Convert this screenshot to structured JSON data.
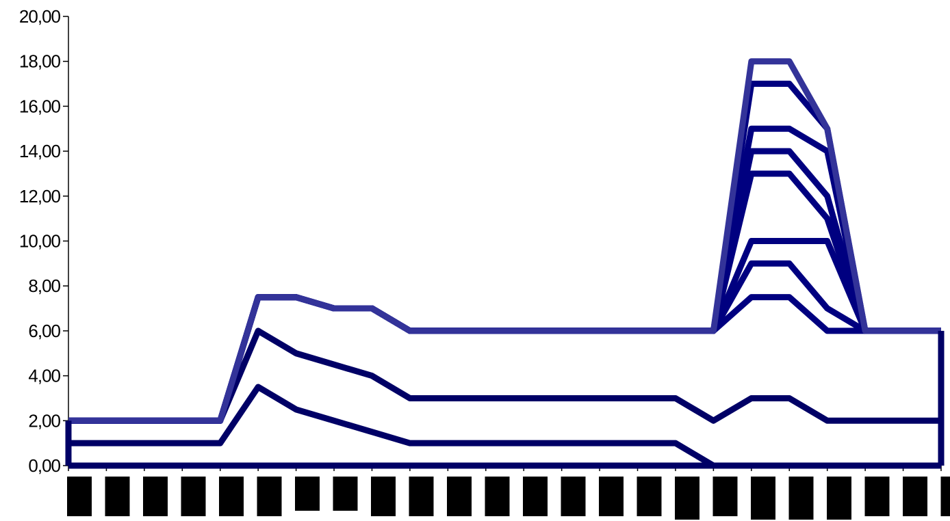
{
  "chart_data": {
    "type": "line",
    "title": "",
    "xlabel": "",
    "ylabel": "",
    "ylim": [
      0,
      20
    ],
    "yticks": [
      "0,00",
      "2,00",
      "4,00",
      "6,00",
      "8,00",
      "10,00",
      "12,00",
      "14,00",
      "16,00",
      "18,00",
      "20,00"
    ],
    "x_categories_count": 24,
    "x_labels_redacted": true,
    "grid": false,
    "legend": "none",
    "series": [
      {
        "color": "#000066",
        "values": [
          0,
          0,
          0,
          0,
          0,
          0,
          0,
          0,
          0,
          0,
          0,
          0,
          0,
          0,
          0,
          0,
          0,
          0,
          0,
          0,
          0,
          0,
          0,
          0
        ]
      },
      {
        "color": "#000066",
        "values": [
          1,
          1,
          1,
          1,
          1,
          3.5,
          2.5,
          2,
          1.5,
          1,
          1,
          1,
          1,
          1,
          1,
          1,
          1,
          0,
          0,
          0,
          0,
          0,
          0,
          0
        ]
      },
      {
        "color": "#000066",
        "values": [
          2,
          2,
          2,
          2,
          2,
          6,
          5,
          4.5,
          4,
          3,
          3,
          3,
          3,
          3,
          3,
          3,
          3,
          2,
          3,
          3,
          2,
          2,
          2,
          2
        ]
      },
      {
        "color": "#000080",
        "values": [
          2,
          2,
          2,
          2,
          2,
          7.5,
          7.5,
          7,
          7,
          6,
          6,
          6,
          6,
          6,
          6,
          6,
          6,
          6,
          7.5,
          7.5,
          6,
          6,
          6,
          6
        ]
      },
      {
        "color": "#000080",
        "values": [
          2,
          2,
          2,
          2,
          2,
          7.5,
          7.5,
          7,
          7,
          6,
          6,
          6,
          6,
          6,
          6,
          6,
          6,
          6,
          9,
          9,
          7,
          6,
          6,
          6
        ]
      },
      {
        "color": "#000080",
        "values": [
          2,
          2,
          2,
          2,
          2,
          7.5,
          7.5,
          7,
          7,
          6,
          6,
          6,
          6,
          6,
          6,
          6,
          6,
          6,
          10,
          10,
          10,
          6,
          6,
          6
        ]
      },
      {
        "color": "#000080",
        "values": [
          2,
          2,
          2,
          2,
          2,
          7.5,
          7.5,
          7,
          7,
          6,
          6,
          6,
          6,
          6,
          6,
          6,
          6,
          6,
          13,
          13,
          11,
          6,
          6,
          6
        ]
      },
      {
        "color": "#000080",
        "values": [
          2,
          2,
          2,
          2,
          2,
          7.5,
          7.5,
          7,
          7,
          6,
          6,
          6,
          6,
          6,
          6,
          6,
          6,
          6,
          14,
          14,
          12,
          6,
          6,
          6
        ]
      },
      {
        "color": "#000080",
        "values": [
          2,
          2,
          2,
          2,
          2,
          7.5,
          7.5,
          7,
          7,
          6,
          6,
          6,
          6,
          6,
          6,
          6,
          6,
          6,
          15,
          15,
          14,
          6,
          6,
          6
        ]
      },
      {
        "color": "#000080",
        "values": [
          2,
          2,
          2,
          2,
          2,
          7.5,
          7.5,
          7,
          7,
          6,
          6,
          6,
          6,
          6,
          6,
          6,
          6,
          6,
          17,
          17,
          15,
          6,
          6,
          6
        ]
      },
      {
        "color": "#333399",
        "values": [
          2,
          2,
          2,
          2,
          2,
          7.5,
          7.5,
          7,
          7,
          6,
          6,
          6,
          6,
          6,
          6,
          6,
          6,
          6,
          18,
          18,
          15,
          6,
          6,
          6
        ]
      }
    ]
  }
}
